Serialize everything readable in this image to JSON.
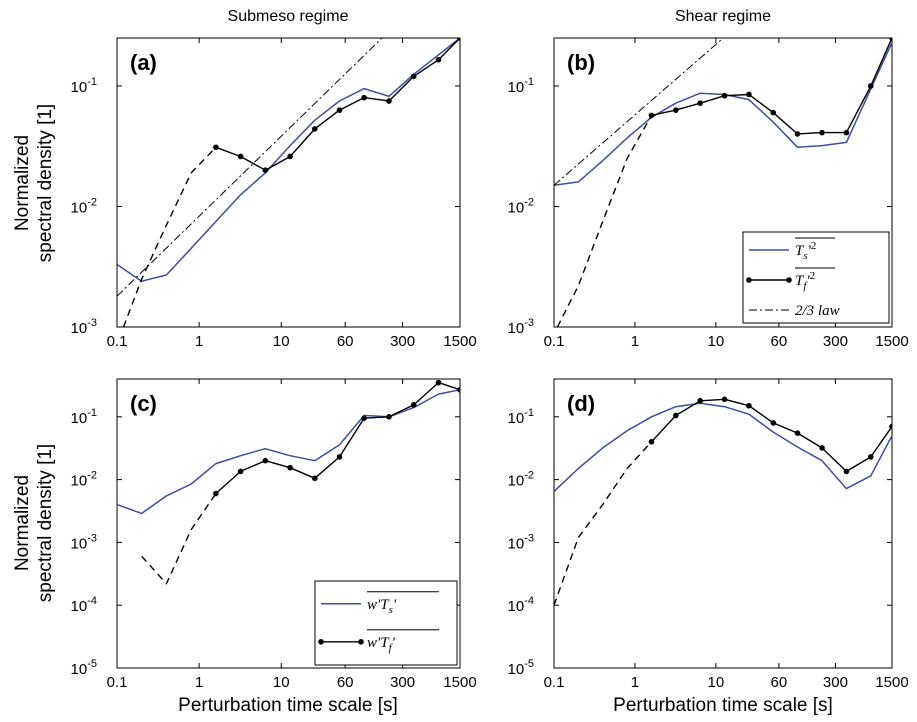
{
  "figure": {
    "col_titles": [
      "Submeso regime",
      "Shear regime"
    ],
    "xlabel": "Perturbation time scale [s]",
    "ylabel_lines": [
      "Normalized",
      "spectral density [1]"
    ]
  },
  "colors": {
    "blue": "#3a4fa0",
    "black": "#000000"
  },
  "chart_data": [
    {
      "type": "line",
      "panel": "(a)",
      "xscale": "log",
      "yscale": "log",
      "xlim": [
        0.1,
        1500
      ],
      "ylim": [
        0.001,
        0.25
      ],
      "xticks": [
        0.1,
        1,
        10,
        60,
        300,
        1500
      ],
      "xtick_labels": [
        "0.1",
        "1",
        "10",
        "60",
        "300",
        "1500"
      ],
      "yticks": [
        0.001,
        0.01,
        0.1
      ],
      "ytick_labels": [
        [
          "10",
          "-3"
        ],
        [
          "10",
          "-2"
        ],
        [
          "10",
          "-1"
        ]
      ],
      "series": [
        {
          "style": "blue-solid",
          "x": [
            0.1,
            0.2,
            0.4,
            0.8,
            1.6,
            3.2,
            6.4,
            12.8,
            25.6,
            51.2,
            102,
            205,
            410,
            1500
          ],
          "y": [
            0.0033,
            0.0024,
            0.0027,
            0.0045,
            0.0075,
            0.0125,
            0.019,
            0.032,
            0.052,
            0.075,
            0.095,
            0.082,
            0.125,
            0.25
          ]
        },
        {
          "style": "black-dashed",
          "x": [
            0.12,
            0.2,
            0.4,
            0.8,
            1.6
          ],
          "y": [
            0.001,
            0.0025,
            0.007,
            0.019,
            0.031
          ]
        },
        {
          "style": "black-dot",
          "x": [
            1.6,
            3.2,
            6.4,
            12.8,
            25.6,
            51.2,
            102,
            205,
            410,
            820,
            1500
          ],
          "y": [
            0.031,
            0.026,
            0.02,
            0.026,
            0.044,
            0.063,
            0.08,
            0.075,
            0.12,
            0.165,
            0.25
          ]
        },
        {
          "style": "black-dashdot",
          "x": [
            0.1,
            200
          ],
          "y": [
            0.0018,
            0.28
          ]
        }
      ]
    },
    {
      "type": "line",
      "panel": "(b)",
      "xscale": "log",
      "yscale": "log",
      "xlim": [
        0.1,
        1500
      ],
      "ylim": [
        0.001,
        0.25
      ],
      "xticks": [
        0.1,
        1,
        10,
        60,
        300,
        1500
      ],
      "xtick_labels": [
        "0.1",
        "1",
        "10",
        "60",
        "300",
        "1500"
      ],
      "yticks": [
        0.001,
        0.01,
        0.1
      ],
      "ytick_labels": [
        [
          "10",
          "-3"
        ],
        [
          "10",
          "-2"
        ],
        [
          "10",
          "-1"
        ]
      ],
      "legend": [
        "T_s'^2",
        "T_f'^2",
        "2/3 law"
      ],
      "series": [
        {
          "style": "blue-solid",
          "x": [
            0.1,
            0.2,
            0.4,
            0.8,
            1.6,
            3.2,
            6.4,
            12.8,
            25.6,
            51.2,
            102,
            205,
            410,
            1500
          ],
          "y": [
            0.015,
            0.016,
            0.024,
            0.037,
            0.055,
            0.072,
            0.087,
            0.085,
            0.077,
            0.05,
            0.031,
            0.032,
            0.034,
            0.23
          ]
        },
        {
          "style": "black-dashed",
          "x": [
            0.11,
            0.2,
            0.4,
            0.8,
            1.6
          ],
          "y": [
            0.001,
            0.0022,
            0.0075,
            0.025,
            0.057
          ]
        },
        {
          "style": "black-dot",
          "x": [
            1.6,
            3.2,
            6.4,
            12.8,
            25.6,
            51.2,
            102,
            205,
            410,
            820,
            1500
          ],
          "y": [
            0.057,
            0.063,
            0.072,
            0.083,
            0.085,
            0.06,
            0.04,
            0.041,
            0.041,
            0.1,
            0.25
          ]
        },
        {
          "style": "black-dashdot",
          "x": [
            0.1,
            15
          ],
          "y": [
            0.015,
            0.28
          ]
        }
      ]
    },
    {
      "type": "line",
      "panel": "(c)",
      "xscale": "log",
      "yscale": "log",
      "xlim": [
        0.1,
        1500
      ],
      "ylim": [
        1e-05,
        0.4
      ],
      "xticks": [
        0.1,
        1,
        10,
        60,
        300,
        1500
      ],
      "xtick_labels": [
        "0.1",
        "1",
        "10",
        "60",
        "300",
        "1500"
      ],
      "yticks": [
        1e-05,
        0.0001,
        0.001,
        0.01,
        0.1
      ],
      "ytick_labels": [
        [
          "10",
          "-5"
        ],
        [
          "10",
          "-4"
        ],
        [
          "10",
          "-3"
        ],
        [
          "10",
          "-2"
        ],
        [
          "10",
          "-1"
        ]
      ],
      "legend": [
        "w'T_s'",
        "w'T_f'"
      ],
      "series": [
        {
          "style": "blue-solid",
          "x": [
            0.1,
            0.2,
            0.4,
            0.8,
            1.6,
            3.2,
            6.4,
            12.8,
            25.6,
            51.2,
            102,
            205,
            410,
            820,
            1500
          ],
          "y": [
            0.004,
            0.0029,
            0.0055,
            0.0085,
            0.018,
            0.024,
            0.031,
            0.024,
            0.02,
            0.036,
            0.105,
            0.1,
            0.14,
            0.23,
            0.27
          ]
        },
        {
          "style": "black-dashed",
          "x": [
            0.2,
            0.4,
            0.8,
            1.6
          ],
          "y": [
            0.0006,
            0.00022,
            0.0016,
            0.006
          ]
        },
        {
          "style": "black-dot",
          "x": [
            1.6,
            3.2,
            6.4,
            12.8,
            25.6,
            51.2,
            102,
            205,
            410,
            820,
            1500
          ],
          "y": [
            0.006,
            0.0135,
            0.02,
            0.0155,
            0.0105,
            0.023,
            0.095,
            0.1,
            0.155,
            0.35,
            0.27
          ]
        }
      ]
    },
    {
      "type": "line",
      "panel": "(d)",
      "xscale": "log",
      "yscale": "log",
      "xlim": [
        0.1,
        1500
      ],
      "ylim": [
        1e-05,
        0.4
      ],
      "xticks": [
        0.1,
        1,
        10,
        60,
        300,
        1500
      ],
      "xtick_labels": [
        "0.1",
        "1",
        "10",
        "60",
        "300",
        "1500"
      ],
      "yticks": [
        1e-05,
        0.0001,
        0.001,
        0.01,
        0.1
      ],
      "ytick_labels": [
        [
          "10",
          "-5"
        ],
        [
          "10",
          "-4"
        ],
        [
          "10",
          "-3"
        ],
        [
          "10",
          "-2"
        ],
        [
          "10",
          "-1"
        ]
      ],
      "series": [
        {
          "style": "blue-solid",
          "x": [
            0.1,
            0.2,
            0.4,
            0.8,
            1.6,
            3.2,
            6.4,
            12.8,
            25.6,
            51.2,
            102,
            205,
            410,
            820,
            1500
          ],
          "y": [
            0.0065,
            0.015,
            0.032,
            0.06,
            0.1,
            0.145,
            0.165,
            0.145,
            0.11,
            0.057,
            0.033,
            0.02,
            0.0072,
            0.0115,
            0.05
          ]
        },
        {
          "style": "black-dashed",
          "x": [
            0.1,
            0.2,
            0.4,
            0.8,
            1.6
          ],
          "y": [
            0.0001,
            0.0012,
            0.004,
            0.015,
            0.04
          ]
        },
        {
          "style": "black-dot",
          "x": [
            1.6,
            3.2,
            6.4,
            12.8,
            25.6,
            51.2,
            102,
            205,
            410,
            820,
            1500
          ],
          "y": [
            0.04,
            0.105,
            0.18,
            0.19,
            0.15,
            0.08,
            0.055,
            0.032,
            0.0135,
            0.023,
            0.07
          ]
        }
      ]
    }
  ]
}
